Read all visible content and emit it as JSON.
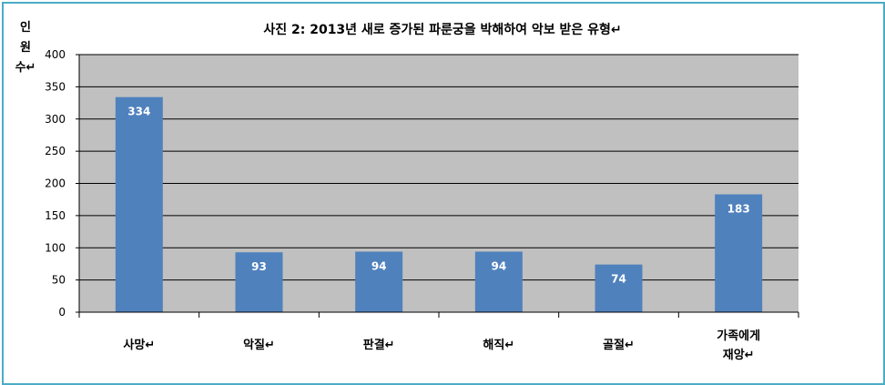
{
  "chart_data": {
    "type": "bar",
    "title": "사진 2: 2013년 새로 증가된 파룬궁을 박해하여 악보 받은 유형↵",
    "ylabel": "인\n원\n수↵",
    "xlabel": "",
    "categories": [
      "사망↵",
      "악질↵",
      "판결↵",
      "해직↵",
      "골절↵",
      "가족에게\n재앙↵"
    ],
    "values": [
      334,
      93,
      94,
      94,
      74,
      183
    ],
    "ylim": [
      0,
      400
    ],
    "yticks": [
      0,
      50,
      100,
      150,
      200,
      250,
      300,
      350,
      400
    ],
    "grid": true,
    "colors": {
      "bar": "#4f81bd",
      "plot_bg": "#c0c0c0",
      "border": "#4bacc6"
    }
  }
}
